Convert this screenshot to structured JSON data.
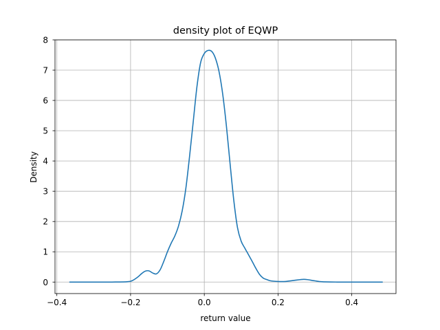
{
  "chart_data": {
    "type": "line",
    "title": "density plot of EQWP",
    "xlabel": "return value",
    "ylabel": "Density",
    "xlim": [
      -0.405,
      0.52
    ],
    "ylim": [
      -0.38,
      8.0
    ],
    "grid": true,
    "legend": "none",
    "xticks": [
      -0.4,
      -0.2,
      0.0,
      0.2,
      0.4
    ],
    "xtick_labels": [
      "−0.4",
      "−0.2",
      "0.0",
      "0.2",
      "0.4"
    ],
    "yticks": [
      0,
      1,
      2,
      3,
      4,
      5,
      6,
      7,
      8
    ],
    "ytick_labels": [
      "0",
      "1",
      "2",
      "3",
      "4",
      "5",
      "6",
      "7",
      "8"
    ],
    "series": [
      {
        "color": "#1f77b4",
        "x": [
          -0.365,
          -0.3,
          -0.25,
          -0.21,
          -0.195,
          -0.18,
          -0.17,
          -0.16,
          -0.15,
          -0.14,
          -0.13,
          -0.12,
          -0.11,
          -0.1,
          -0.09,
          -0.08,
          -0.07,
          -0.06,
          -0.05,
          -0.04,
          -0.03,
          -0.02,
          -0.01,
          0.0,
          0.01,
          0.02,
          0.03,
          0.04,
          0.05,
          0.06,
          0.07,
          0.08,
          0.09,
          0.1,
          0.11,
          0.12,
          0.13,
          0.14,
          0.15,
          0.16,
          0.17,
          0.18,
          0.2,
          0.22,
          0.24,
          0.26,
          0.27,
          0.28,
          0.3,
          0.32,
          0.36,
          0.4,
          0.45,
          0.483
        ],
        "y": [
          0.0,
          0.0,
          0.0,
          0.01,
          0.05,
          0.17,
          0.28,
          0.36,
          0.37,
          0.3,
          0.27,
          0.4,
          0.68,
          1.0,
          1.28,
          1.52,
          1.85,
          2.35,
          3.1,
          4.15,
          5.3,
          6.45,
          7.25,
          7.55,
          7.65,
          7.62,
          7.4,
          6.95,
          6.2,
          5.15,
          3.9,
          2.7,
          1.8,
          1.35,
          1.12,
          0.9,
          0.68,
          0.45,
          0.25,
          0.13,
          0.08,
          0.04,
          0.02,
          0.02,
          0.05,
          0.08,
          0.09,
          0.08,
          0.04,
          0.01,
          0.0,
          0.0,
          0.0,
          0.0
        ]
      }
    ]
  }
}
